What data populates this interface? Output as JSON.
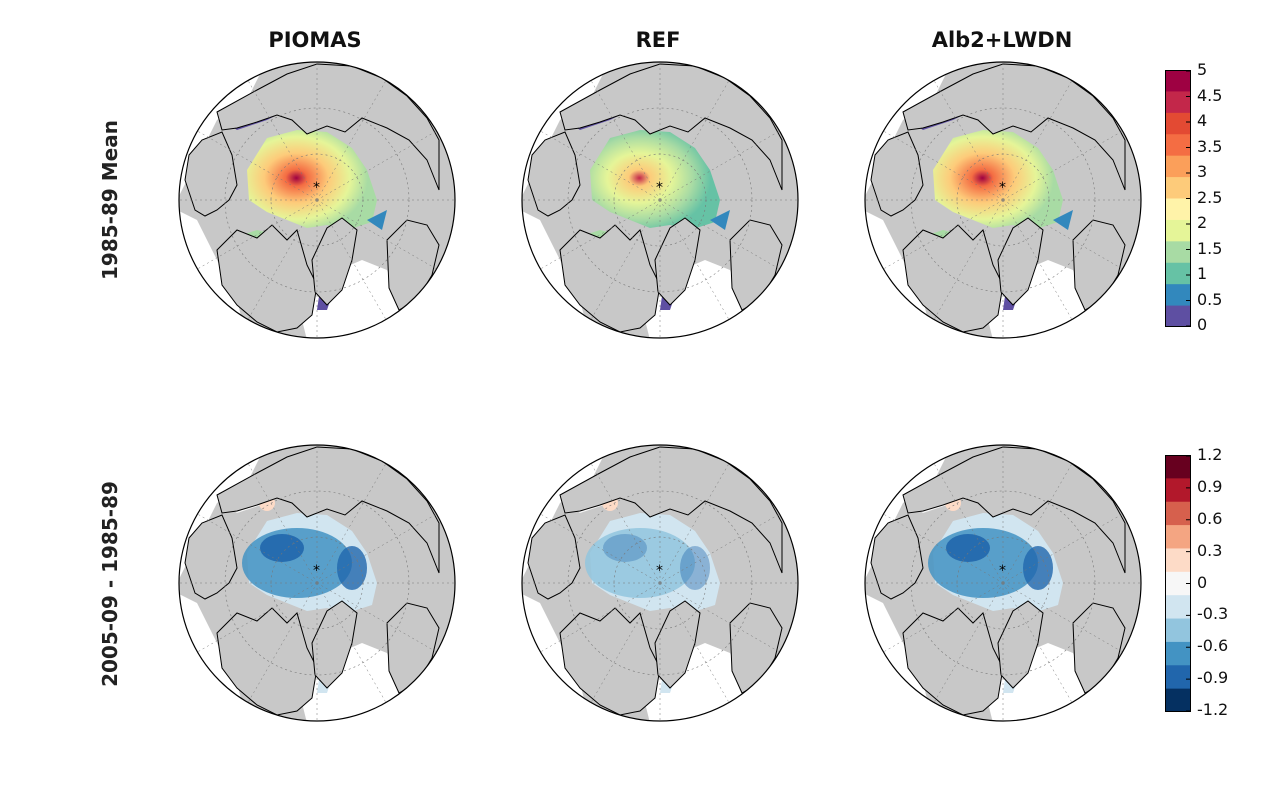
{
  "column_titles": [
    "PIOMAS",
    "REF",
    "Alb2+LWDN"
  ],
  "row_titles": [
    "1985-89 Mean",
    "2005-09 - 1985-89"
  ],
  "colorbar_top": {
    "ticks": [
      "5",
      "4.5",
      "4",
      "3.5",
      "3",
      "2.5",
      "2",
      "1.5",
      "1",
      "0.5",
      "0"
    ],
    "colors": [
      "#9e0142",
      "#c3274a",
      "#e34a33",
      "#f46d43",
      "#fb9f5a",
      "#fdcb7a",
      "#fff3a9",
      "#e5f598",
      "#a8dba4",
      "#66c2a5",
      "#3288bd",
      "#5e4fa2"
    ]
  },
  "colorbar_bottom": {
    "ticks": [
      "1.2",
      "0.9",
      "0.6",
      "0.3",
      "0",
      "-0.3",
      "-0.6",
      "-0.9",
      "-1.2"
    ],
    "colors": [
      "#67001f",
      "#b2182b",
      "#d6604d",
      "#f4a582",
      "#fddbc7",
      "#f7f7f7",
      "#d1e5f0",
      "#92c5de",
      "#4393c3",
      "#2166ac",
      "#053061"
    ]
  },
  "chart_data": {
    "type": "heatmap",
    "panels": [
      {
        "row": "1985-89 Mean",
        "column": "PIOMAS",
        "range": [
          0,
          5
        ]
      },
      {
        "row": "1985-89 Mean",
        "column": "REF",
        "range": [
          0,
          5
        ]
      },
      {
        "row": "1985-89 Mean",
        "column": "Alb2+LWDN",
        "range": [
          0,
          5
        ]
      },
      {
        "row": "2005-09 - 1985-89",
        "column": "PIOMAS",
        "range": [
          -1.2,
          1.2
        ]
      },
      {
        "row": "2005-09 - 1985-89",
        "column": "REF",
        "range": [
          -1.2,
          1.2
        ]
      },
      {
        "row": "2005-09 - 1985-89",
        "column": "Alb2+LWDN",
        "range": [
          -1.2,
          1.2
        ]
      }
    ]
  }
}
